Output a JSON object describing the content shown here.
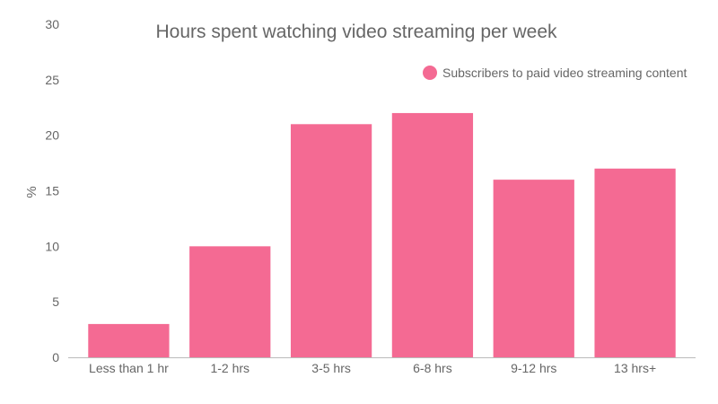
{
  "chart_data": {
    "type": "bar",
    "title": "Hours spent watching video streaming per week",
    "xlabel": "",
    "ylabel": "%",
    "categories": [
      "Less than 1 hr",
      "1-2 hrs",
      "3-5 hrs",
      "6-8 hrs",
      "9-12 hrs",
      "13 hrs+"
    ],
    "series": [
      {
        "name": "Subscribers to paid video streaming content",
        "values": [
          3,
          10,
          21,
          22,
          16,
          17
        ],
        "color": "#f46a93"
      }
    ],
    "ylim": [
      0,
      30
    ],
    "yticks": [
      0,
      5,
      10,
      15,
      20,
      25,
      30
    ],
    "grid": false,
    "legend_position": "top-right"
  }
}
